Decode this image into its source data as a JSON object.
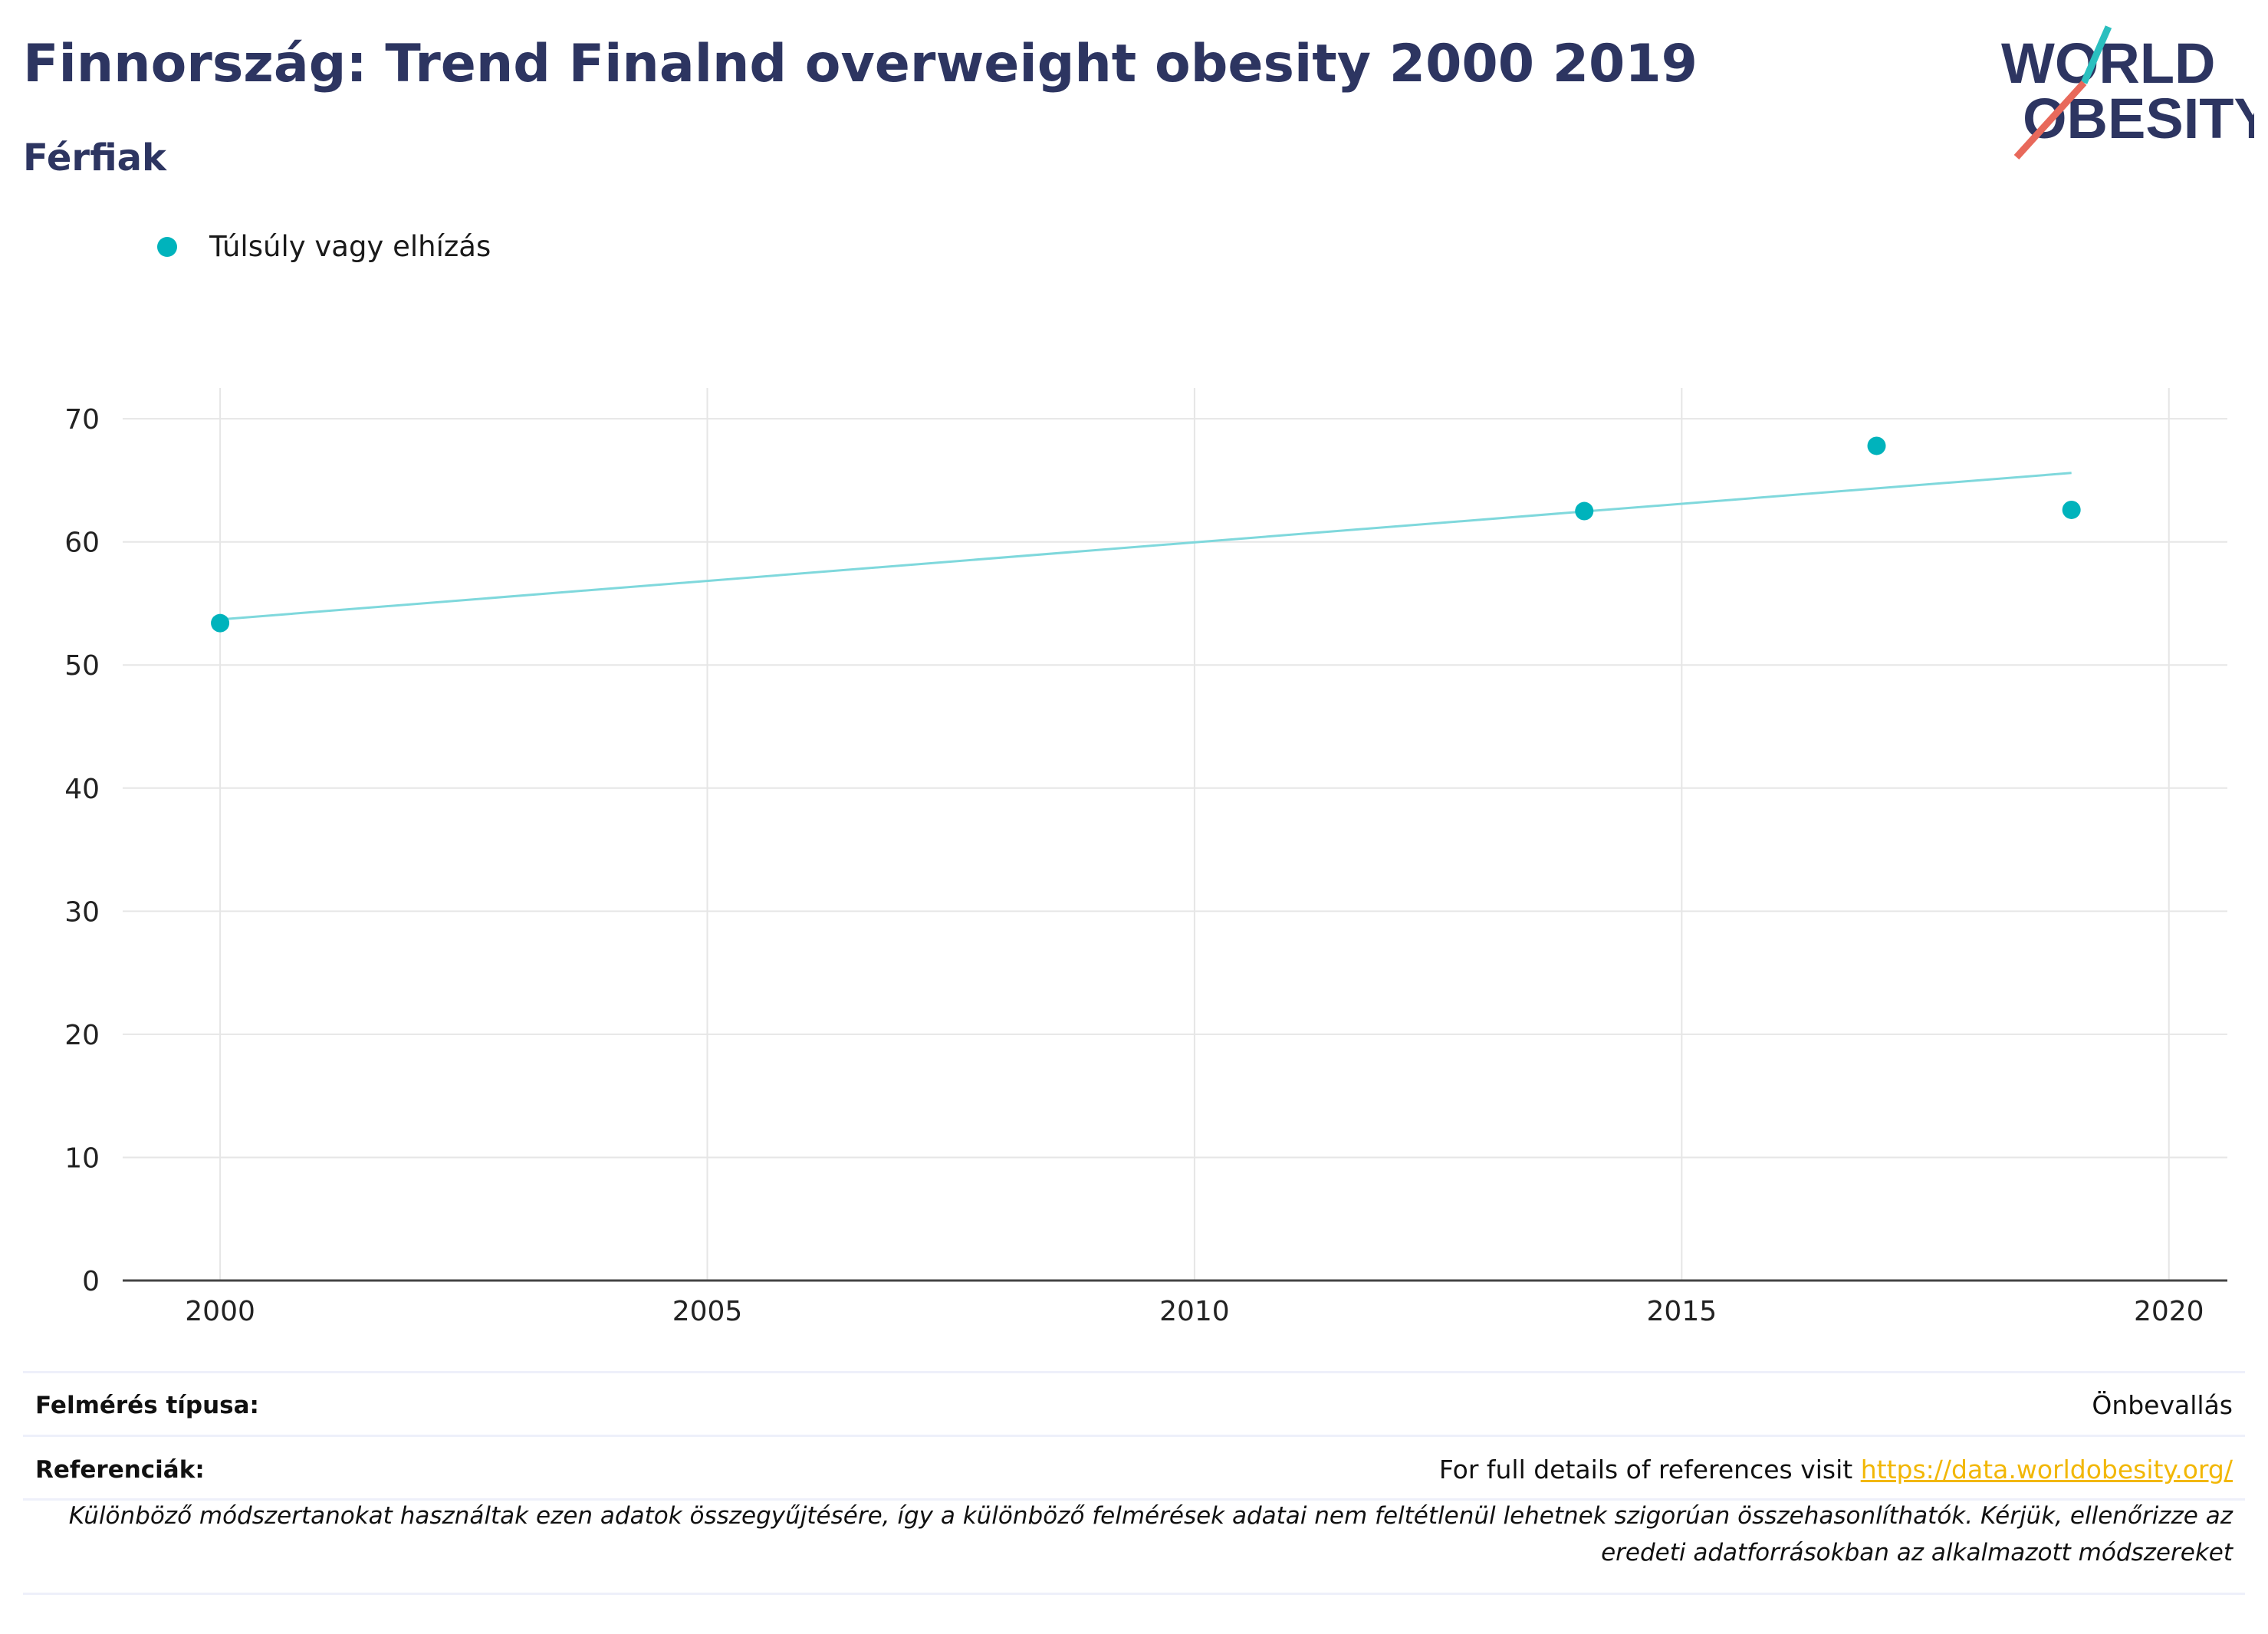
{
  "header": {
    "title": "Finnország: Trend Finalnd overweight obesity 2000 2019",
    "subtitle": "Férfiak"
  },
  "logo": {
    "line1": "WORLD",
    "line2": "OBESITY",
    "colors": {
      "text": "#2d3561",
      "accent_teal": "#2bbfbf",
      "accent_red": "#e8695b"
    }
  },
  "legend": {
    "label": "Túlsúly vagy elhízás",
    "color": "#00b3bc"
  },
  "chart_data": {
    "type": "scatter",
    "series": [
      {
        "name": "Túlsúly vagy elhízás",
        "x": [
          2000,
          2014,
          2017,
          2019
        ],
        "y": [
          53.4,
          62.5,
          67.8,
          62.6
        ],
        "color": "#00b3bc"
      }
    ],
    "trendline": {
      "x": [
        2000,
        2019
      ],
      "y": [
        53.7,
        65.6
      ],
      "color": "#7fd8dc"
    },
    "xlim": [
      1999,
      2020.6
    ],
    "ylim": [
      0,
      72.5
    ],
    "xticks": [
      2000,
      2005,
      2010,
      2015,
      2020
    ],
    "yticks": [
      0,
      10,
      20,
      30,
      40,
      50,
      60,
      70
    ],
    "grid": true,
    "legend_position": "top-left"
  },
  "info": {
    "survey_label": "Felmérés típusa:",
    "survey_value": "Önbevallás",
    "refs_label": "Referenciák:",
    "refs_text": "For full details of references visit ",
    "refs_link": "https://data.worldobesity.org/",
    "note": "Különböző módszertanokat használtak ezen adatok összegyűjtésére, így a különböző felmérések adatai nem feltétlenül lehetnek szigorúan összehasonlíthatók. Kérjük, ellenőrizze az eredeti adatforrásokban az alkalmazott módszereket"
  }
}
